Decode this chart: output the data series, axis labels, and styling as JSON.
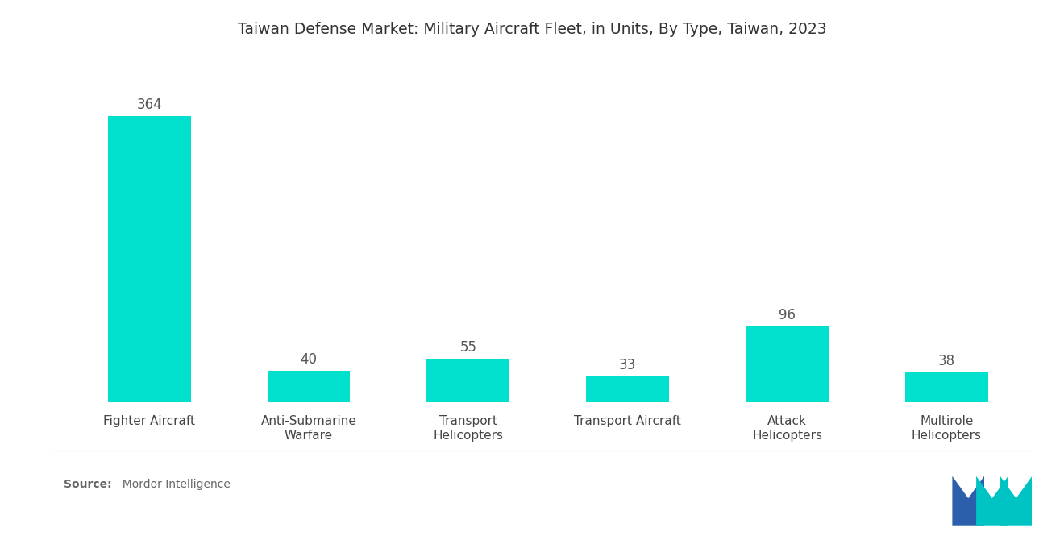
{
  "title": "Taiwan Defense Market: Military Aircraft Fleet, in Units, By Type, Taiwan, 2023",
  "categories": [
    "Fighter Aircraft",
    "Anti-Submarine\nWarfare",
    "Transport\nHelicopters",
    "Transport Aircraft",
    "Attack\nHelicopters",
    "Multirole\nHelicopters"
  ],
  "values": [
    364,
    40,
    55,
    33,
    96,
    38
  ],
  "bar_color": "#00E0CC",
  "background_color": "#ffffff",
  "title_fontsize": 13.5,
  "label_fontsize": 11,
  "value_fontsize": 12,
  "source_bold": "Source:",
  "source_normal": "  Mordor Intelligence",
  "ylim": [
    0,
    430
  ],
  "logo_left_color": "#2b5fac",
  "logo_right_color": "#00c4c4",
  "logo_overlap_color": "#1a9fbb"
}
